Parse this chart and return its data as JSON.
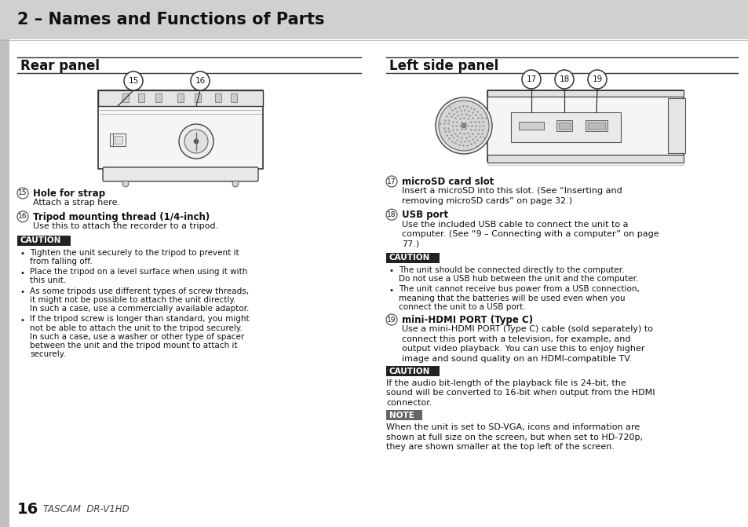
{
  "title": "2 – Names and Functions of Parts",
  "title_bg": "#d0d0d0",
  "title_fontsize": 15,
  "bg_color": "#ffffff",
  "left_section_title": "Rear panel",
  "right_section_title": "Left side panel",
  "section_title_fontsize": 12,
  "item_num_size": 7,
  "item_title_size": 8.5,
  "item_body_size": 8,
  "caution_bg": "#222222",
  "caution_text": "#ffffff",
  "caution_fontsize": 7.5,
  "note_bg": "#666666",
  "note_text": "#ffffff",
  "note_fontsize": 7.5,
  "left_items": [
    {
      "num": "15",
      "title": "Hole for strap",
      "body": "Attach a strap here."
    },
    {
      "num": "16",
      "title": "Tripod mounting thread (1/4-inch)",
      "body": "Use this to attach the recorder to a tripod."
    }
  ],
  "left_caution_items": [
    "Tighten the unit securely to the tripod to prevent it from falling off.",
    "Place the tripod on a level surface when using it with this unit.",
    "As some tripods use different types of screw threads, it might not be possible to attach the unit directly. In such a case, use a commercially available adaptor.",
    "If the tripod screw is longer than standard, you might not be able to attach the unit to the tripod securely. In such a case, use a washer or other type of spacer between the unit and the tripod mount to attach it securely."
  ],
  "right_items": [
    {
      "num": "17",
      "title": "microSD card slot",
      "body": "Insert a microSD into this slot. (See “Inserting and removing microSD cards” on page 32.)"
    },
    {
      "num": "18",
      "title": "USB port",
      "body": "Use the included USB cable to connect the unit to a computer. (See “9 – Connecting with a computer” on page 77.)"
    }
  ],
  "right_caution_items": [
    "The unit should be connected directly to the computer. Do not use a USB hub between the unit and the computer.",
    "The unit cannot receive bus power from a USB connection, meaning that the batteries will be used even when you connect the unit to a USB port."
  ],
  "right_item19": {
    "num": "19",
    "title": "mini-HDMI PORT (Type C)",
    "body": "Use a mini-HDMI PORT (Type C) cable (sold separately) to connect this port with a television, for example, and output video playback. You can use this to enjoy higher image and sound quality on an HDMI-compatible TV."
  },
  "right_caution2": "If the audio bit-length of the playback file is 24-bit, the sound will be converted to 16-bit when output from the HDMI connector.",
  "right_note": "When the unit is set to SD-VGA, icons and information are shown at full size on the screen, but when set to HD-720p, they are shown smaller at the top left of the screen.",
  "footer_num": "16",
  "footer_text": "TASCAM  DR-V1HD"
}
